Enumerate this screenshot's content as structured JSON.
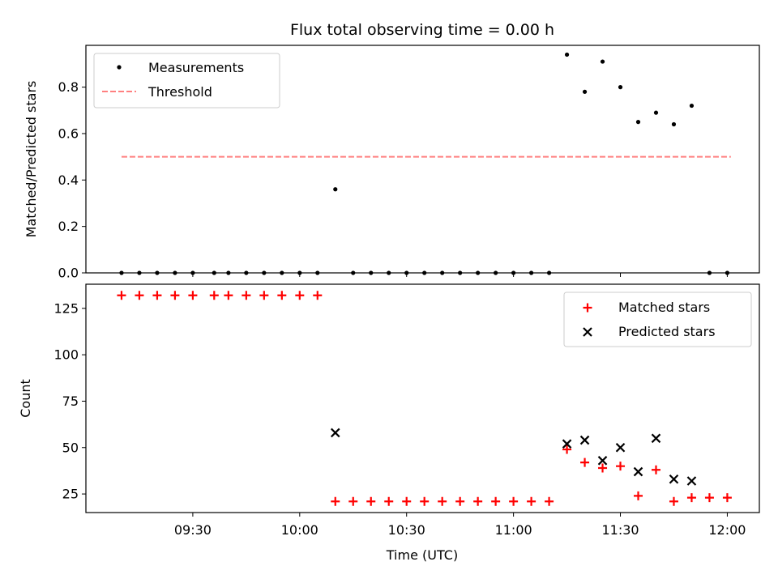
{
  "title": "Flux total observing time = 0.00 h",
  "x_axis": {
    "label": "Time (UTC)",
    "range": [
      "09:00",
      "12:09"
    ],
    "ticks": [
      "09:30",
      "10:00",
      "10:30",
      "11:00",
      "11:30",
      "12:00"
    ]
  },
  "colors": {
    "measurement": "#000000",
    "threshold": "#ff8080",
    "matched": "#ff0000",
    "predicted": "#000000"
  },
  "chart_data": [
    {
      "type": "scatter",
      "ylabel": "Matched/Predicted stars",
      "ylim": [
        0,
        0.98
      ],
      "yticks": [
        "0.0",
        "0.2",
        "0.4",
        "0.6",
        "0.8"
      ],
      "legend": "top-left",
      "threshold": {
        "name": "Threshold",
        "y": 0.5,
        "x_start": "09:10",
        "x_end": "12:01",
        "style": "dashed"
      },
      "series": [
        {
          "name": "Measurements",
          "points": [
            [
              "09:10",
              0.0
            ],
            [
              "09:15",
              0.0
            ],
            [
              "09:20",
              0.0
            ],
            [
              "09:25",
              0.0
            ],
            [
              "09:30",
              0.0
            ],
            [
              "09:36",
              0.0
            ],
            [
              "09:40",
              0.0
            ],
            [
              "09:45",
              0.0
            ],
            [
              "09:50",
              0.0
            ],
            [
              "09:55",
              0.0
            ],
            [
              "10:00",
              0.0
            ],
            [
              "10:05",
              0.0
            ],
            [
              "10:10",
              0.36
            ],
            [
              "10:15",
              0.0
            ],
            [
              "10:20",
              0.0
            ],
            [
              "10:25",
              0.0
            ],
            [
              "10:30",
              0.0
            ],
            [
              "10:35",
              0.0
            ],
            [
              "10:40",
              0.0
            ],
            [
              "10:45",
              0.0
            ],
            [
              "10:50",
              0.0
            ],
            [
              "10:55",
              0.0
            ],
            [
              "11:00",
              0.0
            ],
            [
              "11:05",
              0.0
            ],
            [
              "11:10",
              0.0
            ],
            [
              "11:15",
              0.94
            ],
            [
              "11:20",
              0.78
            ],
            [
              "11:25",
              0.91
            ],
            [
              "11:30",
              0.8
            ],
            [
              "11:35",
              0.65
            ],
            [
              "11:40",
              0.69
            ],
            [
              "11:45",
              0.64
            ],
            [
              "11:50",
              0.72
            ],
            [
              "11:55",
              0.0
            ],
            [
              "12:00",
              0.0
            ]
          ]
        }
      ]
    },
    {
      "type": "scatter",
      "ylabel": "Count",
      "ylim": [
        15,
        138
      ],
      "yticks": [
        "25",
        "50",
        "75",
        "100",
        "125"
      ],
      "legend": "top-right",
      "series": [
        {
          "name": "Matched stars",
          "marker": "plus",
          "points": [
            [
              "09:10",
              132
            ],
            [
              "09:15",
              132
            ],
            [
              "09:20",
              132
            ],
            [
              "09:25",
              132
            ],
            [
              "09:30",
              132
            ],
            [
              "09:36",
              132
            ],
            [
              "09:40",
              132
            ],
            [
              "09:45",
              132
            ],
            [
              "09:50",
              132
            ],
            [
              "09:55",
              132
            ],
            [
              "10:00",
              132
            ],
            [
              "10:05",
              132
            ],
            [
              "10:10",
              21
            ],
            [
              "10:15",
              21
            ],
            [
              "10:20",
              21
            ],
            [
              "10:25",
              21
            ],
            [
              "10:30",
              21
            ],
            [
              "10:35",
              21
            ],
            [
              "10:40",
              21
            ],
            [
              "10:45",
              21
            ],
            [
              "10:50",
              21
            ],
            [
              "10:55",
              21
            ],
            [
              "11:00",
              21
            ],
            [
              "11:05",
              21
            ],
            [
              "11:10",
              21
            ],
            [
              "11:15",
              49
            ],
            [
              "11:20",
              42
            ],
            [
              "11:25",
              39
            ],
            [
              "11:30",
              40
            ],
            [
              "11:35",
              24
            ],
            [
              "11:40",
              38
            ],
            [
              "11:45",
              21
            ],
            [
              "11:50",
              23
            ],
            [
              "11:55",
              23
            ],
            [
              "12:00",
              23
            ]
          ]
        },
        {
          "name": "Predicted stars",
          "marker": "x",
          "points": [
            [
              "10:10",
              58
            ],
            [
              "11:15",
              52
            ],
            [
              "11:20",
              54
            ],
            [
              "11:25",
              43
            ],
            [
              "11:30",
              50
            ],
            [
              "11:35",
              37
            ],
            [
              "11:40",
              55
            ],
            [
              "11:45",
              33
            ],
            [
              "11:50",
              32
            ]
          ]
        }
      ]
    }
  ]
}
